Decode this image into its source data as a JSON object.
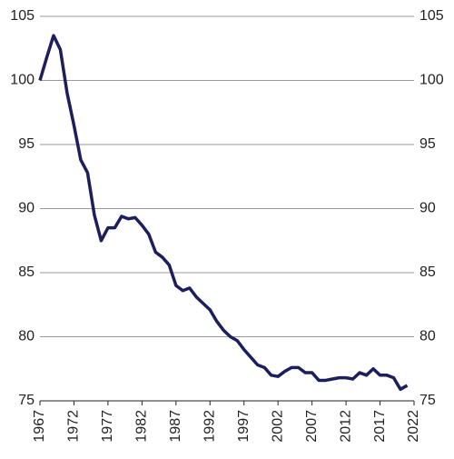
{
  "chart_data": {
    "type": "line",
    "x": [
      1967,
      1968,
      1969,
      1970,
      1971,
      1972,
      1973,
      1974,
      1975,
      1976,
      1977,
      1978,
      1979,
      1980,
      1981,
      1982,
      1983,
      1984,
      1985,
      1986,
      1987,
      1988,
      1989,
      1990,
      1991,
      1992,
      1993,
      1994,
      1995,
      1996,
      1997,
      1998,
      1999,
      2000,
      2001,
      2002,
      2003,
      2004,
      2005,
      2006,
      2007,
      2008,
      2009,
      2010,
      2011,
      2012,
      2013,
      2014,
      2015,
      2016,
      2017,
      2018,
      2019,
      2020,
      2021
    ],
    "values": [
      100,
      101.8,
      103.5,
      102.4,
      99,
      96.5,
      93.8,
      92.8,
      89.5,
      87.5,
      88.5,
      88.5,
      89.4,
      89.2,
      89.3,
      88.7,
      88,
      86.6,
      86.2,
      85.6,
      84,
      83.6,
      83.8,
      83.1,
      82.6,
      82.1,
      81.2,
      80.5,
      80,
      79.7,
      79,
      78.4,
      77.8,
      77.6,
      77,
      76.9,
      77.3,
      77.6,
      77.6,
      77.2,
      77.2,
      76.6,
      76.6,
      76.7,
      76.8,
      76.8,
      76.7,
      77.2,
      77,
      77.5,
      77,
      77,
      76.8,
      75.9,
      76.2
    ],
    "color": "#1c1f5c",
    "xlim": [
      1967,
      2022
    ],
    "xticks": [
      1967,
      1972,
      1977,
      1982,
      1987,
      1992,
      1997,
      2002,
      2007,
      2012,
      2017,
      2022
    ],
    "ylim": [
      75,
      105
    ],
    "yticks": [
      75,
      80,
      85,
      90,
      95,
      100,
      105
    ],
    "y2lim": [
      75,
      105
    ],
    "y2ticks": [
      75,
      80,
      85,
      90,
      95,
      100,
      105
    ],
    "grid": true
  }
}
